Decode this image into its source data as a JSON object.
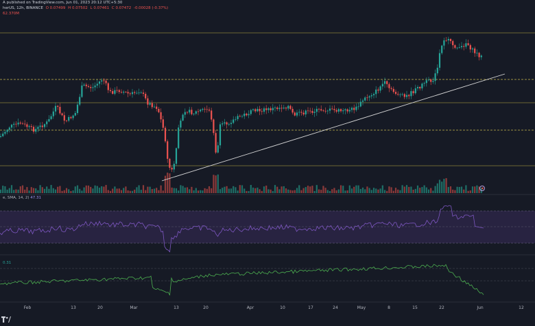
{
  "header": {
    "line1": "A published on TradingView.com, Jun 01, 2023 20:12 UTC+5:30",
    "symbol": "herUS, 12h, BINANCE",
    "o": "O 0.07499",
    "h": "H 0.07502",
    "l": "L 0.07461",
    "c": "C 0.07472",
    "chg": "-0.00028 (-0.37%)",
    "line3": "62.370M"
  },
  "rsi": {
    "label": "e, SMA, 14, 2)",
    "value": "47.31"
  },
  "indicator2": {
    "value": "0.31"
  },
  "x_labels": [
    "Feb",
    "13",
    "20",
    "Mar",
    "13",
    "20",
    "Apr",
    "10",
    "17",
    "24",
    "May",
    "8",
    "15",
    "22",
    "Jun",
    "12"
  ],
  "colors": {
    "background": "#161a25",
    "up": "#26a69a",
    "down": "#ef5350",
    "support_line": "#c9b94e",
    "trendline": "#d9d9d9",
    "rsi_line": "#7e57c2",
    "rsi_band": "#2a2545",
    "indicator2_line": "#4caf50"
  },
  "icons": {
    "logo": "tradingview-logo-icon",
    "replay": "replay-icon"
  }
}
